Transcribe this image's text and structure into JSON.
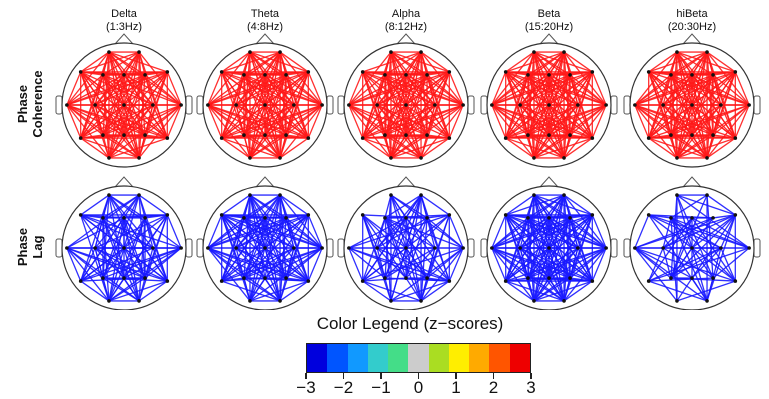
{
  "bands": [
    {
      "name": "Delta",
      "range": "(1:3Hz)"
    },
    {
      "name": "Theta",
      "range": "(4:8Hz)"
    },
    {
      "name": "Alpha",
      "range": "(8:12Hz)"
    },
    {
      "name": "Beta",
      "range": "(15:20Hz)"
    },
    {
      "name": "hiBeta",
      "range": "(20:30Hz)"
    }
  ],
  "rows": [
    {
      "label_line1": "Phase",
      "label_line2": "Coherence",
      "line_color": "#ff1a1a",
      "density": [
        0.9,
        0.95,
        0.9,
        1.0,
        0.95
      ]
    },
    {
      "label_line1": "Phase",
      "label_line2": "Lag",
      "line_color": "#1a1aff",
      "density": [
        0.7,
        0.8,
        0.55,
        0.95,
        0.35
      ]
    }
  ],
  "legend": {
    "title": "Color Legend (z−scores)",
    "colors": [
      "#0000dd",
      "#0055ff",
      "#1199ff",
      "#33cccc",
      "#44dd88",
      "#cccccc",
      "#aadd22",
      "#ffee00",
      "#ffaa00",
      "#ff5500",
      "#ee0000"
    ],
    "ticks": [
      "−3",
      "−2",
      "−1",
      "0",
      "1",
      "2",
      "3"
    ]
  }
}
